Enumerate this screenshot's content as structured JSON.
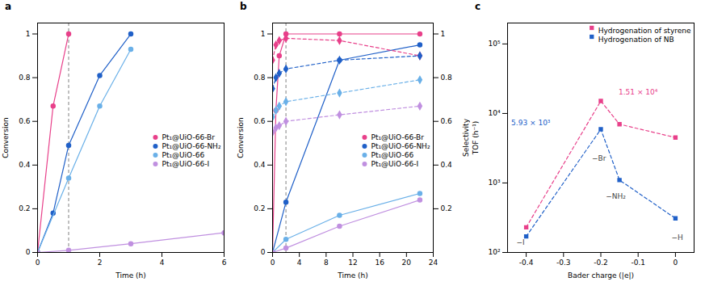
{
  "chart_data": [
    {
      "type": "line",
      "title": "a",
      "xlabel": "Time (h)",
      "ylabel": "Conversion",
      "xlim": [
        0,
        6
      ],
      "ylim": [
        0,
        1.05
      ],
      "xticks": [
        0,
        2,
        4,
        6
      ],
      "yticks": [
        0,
        0.2,
        0.4,
        0.6,
        0.8,
        1.0
      ],
      "legend": "right",
      "annotations": [
        {
          "x": 1.0,
          "line_style": "dashed"
        }
      ],
      "series": [
        {
          "name": "Pt₁@UiO-66-Br",
          "color": "#e8408a",
          "marker": "circle",
          "line_style": "solid",
          "x": [
            0,
            0.5,
            1.0
          ],
          "values": [
            0,
            0.67,
            1.0
          ]
        },
        {
          "name": "Pt₁@UiO-66-NH₂",
          "color": "#2060c8",
          "marker": "circle",
          "line_style": "solid",
          "x": [
            0,
            0.5,
            1.0,
            2.0,
            3.0
          ],
          "values": [
            0,
            0.18,
            0.49,
            0.81,
            1.0
          ]
        },
        {
          "name": "Pt₁@UiO-66",
          "color": "#6ab0e8",
          "marker": "circle",
          "line_style": "solid",
          "x": [
            0,
            1.0,
            2.0,
            3.0
          ],
          "values": [
            0,
            0.34,
            0.67,
            0.93
          ]
        },
        {
          "name": "Pt₁@UiO-66-I",
          "color": "#c090e0",
          "marker": "circle",
          "line_style": "solid",
          "x": [
            0,
            1.0,
            3.0,
            6.0
          ],
          "values": [
            0,
            0.01,
            0.04,
            0.09
          ]
        }
      ]
    },
    {
      "type": "line",
      "title": "b",
      "xlabel": "Time (h)",
      "ylabel": "Conversion",
      "y2label": "Selectivity",
      "xlim": [
        0,
        24
      ],
      "ylim": [
        0,
        1.05
      ],
      "y2lim": [
        0,
        1.05
      ],
      "xticks": [
        0,
        4,
        8,
        12,
        16,
        20,
        24
      ],
      "yticks": [
        0,
        0.2,
        0.4,
        0.6,
        0.8,
        1.0
      ],
      "y2ticks": [
        0.2,
        0.4,
        0.6,
        0.8,
        1.0
      ],
      "legend": "right",
      "annotations": [
        {
          "x": 2.0,
          "line_style": "dashed"
        }
      ],
      "series": [
        {
          "name": "Pt₁@UiO-66-Br",
          "color": "#e8408a",
          "marker": "circle",
          "line_style": "solid",
          "x": [
            0,
            0.5,
            1.0,
            2.0,
            10.0,
            22.0
          ],
          "values": [
            0,
            0.65,
            0.9,
            1.0,
            1.0,
            1.0
          ]
        },
        {
          "name": "Pt₁@UiO-66-NH₂",
          "color": "#2060c8",
          "marker": "circle",
          "line_style": "solid",
          "x": [
            0,
            2.0,
            10.0,
            22.0
          ],
          "values": [
            0,
            0.23,
            0.88,
            0.95
          ]
        },
        {
          "name": "Pt₁@UiO-66",
          "color": "#6ab0e8",
          "marker": "circle",
          "line_style": "solid",
          "x": [
            0,
            2.0,
            10.0,
            22.0
          ],
          "values": [
            0,
            0.06,
            0.17,
            0.27
          ]
        },
        {
          "name": "Pt₁@UiO-66-I",
          "color": "#c090e0",
          "marker": "circle",
          "line_style": "solid",
          "x": [
            0,
            2.0,
            10.0,
            22.0
          ],
          "values": [
            0,
            0.02,
            0.12,
            0.24
          ]
        },
        {
          "name": "Pt₁@UiO-66-Br",
          "color": "#e8408a",
          "marker": "diamond",
          "line_style": "dashed",
          "axis": "y2",
          "x": [
            0,
            0.5,
            1.0,
            2.0,
            10.0,
            22.0
          ],
          "values": [
            0.88,
            0.95,
            0.97,
            0.98,
            0.97,
            0.9
          ]
        },
        {
          "name": "Pt₁@UiO-66-NH₂",
          "color": "#2060c8",
          "marker": "diamond",
          "line_style": "dashed",
          "axis": "y2",
          "x": [
            0,
            0.5,
            1.0,
            2.0,
            10.0,
            22.0
          ],
          "values": [
            0.75,
            0.8,
            0.82,
            0.84,
            0.88,
            0.9
          ]
        },
        {
          "name": "Pt₁@UiO-66",
          "color": "#6ab0e8",
          "marker": "diamond",
          "line_style": "dashed",
          "axis": "y2",
          "x": [
            0,
            0.5,
            1.0,
            2.0,
            10.0,
            22.0
          ],
          "values": [
            0.62,
            0.65,
            0.67,
            0.69,
            0.73,
            0.79
          ]
        },
        {
          "name": "Pt₁@UiO-66-I",
          "color": "#c090e0",
          "marker": "diamond",
          "line_style": "dashed",
          "axis": "y2",
          "x": [
            0,
            0.5,
            1.0,
            2.0,
            10.0,
            22.0
          ],
          "values": [
            0.55,
            0.57,
            0.58,
            0.6,
            0.63,
            0.67
          ]
        }
      ]
    },
    {
      "type": "line",
      "title": "c",
      "xlabel": "Bader charge (|e|)",
      "ylabel": "TOF (h⁻¹)",
      "log": "y",
      "xlim": [
        -0.45,
        0.05
      ],
      "ylim": [
        100,
        200000
      ],
      "xticks": [
        -0.4,
        -0.3,
        -0.2,
        -0.1,
        0.0
      ],
      "yticks": [
        {
          "value": 100,
          "label": "10²"
        },
        {
          "value": 1000,
          "label": "10³"
        },
        {
          "value": 10000,
          "label": "10⁴"
        },
        {
          "value": 100000,
          "label": "10⁵"
        }
      ],
      "legend": "upper right",
      "annotations": [
        {
          "text": "−Br",
          "x": -0.205,
          "y": 2500,
          "color": "#444444"
        },
        {
          "text": "−NH₂",
          "x": -0.16,
          "y": 700,
          "color": "#444444"
        },
        {
          "text": "−H",
          "x": 0.005,
          "y": 180,
          "color": "#444444"
        },
        {
          "text": "−I",
          "x": -0.415,
          "y": 155,
          "color": "#444444"
        },
        {
          "text": "1.51 × 10⁴",
          "x": -0.1,
          "y": 22000,
          "color": "#e8408a"
        },
        {
          "text": "5.93 × 10³",
          "x": -0.44,
          "y": 8000,
          "color": "#2060c8"
        }
      ],
      "series": [
        {
          "name": "Hydrogenation of styrene",
          "color": "#e8408a",
          "marker": "square",
          "line_style": "dashed",
          "x": [
            -0.4,
            -0.2,
            -0.15,
            0.0
          ],
          "values": [
            230,
            15100,
            7000,
            4500
          ]
        },
        {
          "name": "Hydrogenation of NB",
          "color": "#2060c8",
          "marker": "square",
          "line_style": "dashed",
          "x": [
            -0.4,
            -0.2,
            -0.15,
            0.0
          ],
          "values": [
            170,
            5930,
            1100,
            310
          ]
        }
      ]
    }
  ]
}
